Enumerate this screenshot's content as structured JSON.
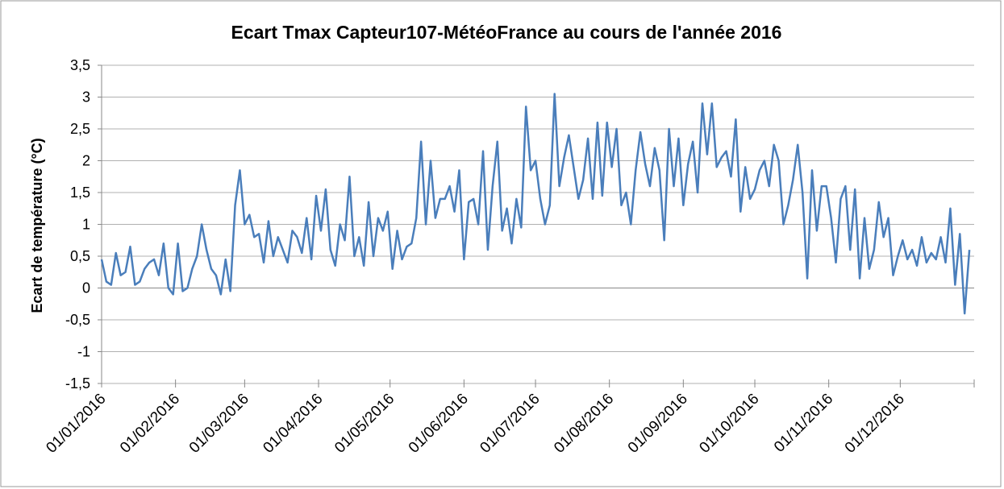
{
  "chart_data": {
    "type": "line",
    "title": "Ecart Tmax Capteur107-MétéoFrance au cours de l'année 2016",
    "y_label": "Ecart de température (°C)",
    "x": [
      "01/01/2016",
      "03/01/2016",
      "05/01/2016",
      "07/01/2016",
      "09/01/2016",
      "11/01/2016",
      "13/01/2016",
      "15/01/2016",
      "17/01/2016",
      "19/01/2016",
      "21/01/2016",
      "23/01/2016",
      "25/01/2016",
      "27/01/2016",
      "29/01/2016",
      "31/01/2016",
      "02/02/2016",
      "04/02/2016",
      "06/02/2016",
      "08/02/2016",
      "10/02/2016",
      "12/02/2016",
      "14/02/2016",
      "16/02/2016",
      "18/02/2016",
      "20/02/2016",
      "22/02/2016",
      "24/02/2016",
      "26/02/2016",
      "28/02/2016",
      "01/03/2016",
      "03/03/2016",
      "05/03/2016",
      "07/03/2016",
      "09/03/2016",
      "11/03/2016",
      "13/03/2016",
      "15/03/2016",
      "17/03/2016",
      "19/03/2016",
      "21/03/2016",
      "23/03/2016",
      "25/03/2016",
      "27/03/2016",
      "29/03/2016",
      "31/03/2016",
      "02/04/2016",
      "04/04/2016",
      "06/04/2016",
      "08/04/2016",
      "10/04/2016",
      "12/04/2016",
      "14/04/2016",
      "16/04/2016",
      "18/04/2016",
      "20/04/2016",
      "22/04/2016",
      "24/04/2016",
      "26/04/2016",
      "28/04/2016",
      "30/04/2016",
      "02/05/2016",
      "04/05/2016",
      "06/05/2016",
      "08/05/2016",
      "10/05/2016",
      "12/05/2016",
      "14/05/2016",
      "16/05/2016",
      "18/05/2016",
      "20/05/2016",
      "22/05/2016",
      "24/05/2016",
      "26/05/2016",
      "28/05/2016",
      "30/05/2016",
      "01/06/2016",
      "03/06/2016",
      "05/06/2016",
      "07/06/2016",
      "09/06/2016",
      "11/06/2016",
      "13/06/2016",
      "15/06/2016",
      "17/06/2016",
      "19/06/2016",
      "21/06/2016",
      "23/06/2016",
      "25/06/2016",
      "27/06/2016",
      "29/06/2016",
      "01/07/2016",
      "03/07/2016",
      "05/07/2016",
      "07/07/2016",
      "09/07/2016",
      "11/07/2016",
      "13/07/2016",
      "15/07/2016",
      "17/07/2016",
      "19/07/2016",
      "21/07/2016",
      "23/07/2016",
      "25/07/2016",
      "27/07/2016",
      "29/07/2016",
      "31/07/2016",
      "02/08/2016",
      "04/08/2016",
      "06/08/2016",
      "08/08/2016",
      "10/08/2016",
      "12/08/2016",
      "14/08/2016",
      "16/08/2016",
      "18/08/2016",
      "20/08/2016",
      "22/08/2016",
      "24/08/2016",
      "26/08/2016",
      "28/08/2016",
      "30/08/2016",
      "01/09/2016",
      "03/09/2016",
      "05/09/2016",
      "07/09/2016",
      "09/09/2016",
      "11/09/2016",
      "13/09/2016",
      "15/09/2016",
      "17/09/2016",
      "19/09/2016",
      "21/09/2016",
      "23/09/2016",
      "25/09/2016",
      "27/09/2016",
      "29/09/2016",
      "01/10/2016",
      "03/10/2016",
      "05/10/2016",
      "07/10/2016",
      "09/10/2016",
      "11/10/2016",
      "13/10/2016",
      "15/10/2016",
      "17/10/2016",
      "19/10/2016",
      "21/10/2016",
      "23/10/2016",
      "25/10/2016",
      "27/10/2016",
      "29/10/2016",
      "31/10/2016",
      "02/11/2016",
      "04/11/2016",
      "06/11/2016",
      "08/11/2016",
      "10/11/2016",
      "12/11/2016",
      "14/11/2016",
      "16/11/2016",
      "18/11/2016",
      "20/11/2016",
      "22/11/2016",
      "24/11/2016",
      "26/11/2016",
      "28/11/2016",
      "30/11/2016",
      "02/12/2016",
      "04/12/2016",
      "06/12/2016",
      "08/12/2016",
      "10/12/2016",
      "12/12/2016",
      "14/12/2016",
      "16/12/2016",
      "18/12/2016",
      "20/12/2016",
      "22/12/2016",
      "24/12/2016",
      "26/12/2016",
      "28/12/2016",
      "30/12/2016"
    ],
    "series": [
      {
        "color": "#4a7ebb",
        "values": [
          0.45,
          0.1,
          0.05,
          0.55,
          0.2,
          0.25,
          0.65,
          0.05,
          0.1,
          0.3,
          0.4,
          0.45,
          0.2,
          0.7,
          0.0,
          -0.1,
          0.7,
          -0.05,
          0.0,
          0.3,
          0.5,
          1.0,
          0.6,
          0.3,
          0.2,
          -0.1,
          0.45,
          -0.05,
          1.3,
          1.85,
          1.0,
          1.15,
          0.8,
          0.85,
          0.4,
          1.05,
          0.5,
          0.8,
          0.6,
          0.4,
          0.9,
          0.8,
          0.55,
          1.1,
          0.45,
          1.45,
          0.9,
          1.55,
          0.6,
          0.35,
          1.0,
          0.75,
          1.75,
          0.5,
          0.8,
          0.35,
          1.35,
          0.5,
          1.1,
          0.9,
          1.2,
          0.3,
          0.9,
          0.45,
          0.65,
          0.7,
          1.1,
          2.3,
          1.0,
          2.0,
          1.1,
          1.4,
          1.4,
          1.6,
          1.2,
          1.85,
          0.45,
          1.35,
          1.4,
          1.0,
          2.15,
          0.6,
          1.6,
          2.3,
          0.9,
          1.25,
          0.7,
          1.4,
          0.95,
          2.85,
          1.85,
          2.0,
          1.4,
          1.0,
          1.3,
          3.05,
          1.6,
          2.05,
          2.4,
          1.9,
          1.4,
          1.7,
          2.35,
          1.4,
          2.6,
          1.45,
          2.6,
          1.9,
          2.5,
          1.3,
          1.5,
          1.0,
          1.85,
          2.45,
          1.95,
          1.6,
          2.2,
          1.85,
          0.75,
          2.5,
          1.6,
          2.35,
          1.3,
          1.95,
          2.3,
          1.5,
          2.9,
          2.1,
          2.9,
          1.9,
          2.05,
          2.15,
          1.75,
          2.65,
          1.2,
          1.9,
          1.4,
          1.55,
          1.85,
          2.0,
          1.6,
          2.25,
          2.0,
          1.0,
          1.3,
          1.7,
          2.25,
          1.5,
          0.15,
          1.85,
          0.9,
          1.6,
          1.6,
          1.1,
          0.4,
          1.4,
          1.6,
          0.6,
          1.55,
          0.15,
          1.1,
          0.3,
          0.6,
          1.35,
          0.8,
          1.1,
          0.2,
          0.5,
          0.75,
          0.45,
          0.6,
          0.35,
          0.8,
          0.4,
          0.55,
          0.45,
          0.8,
          0.4,
          1.25,
          0.05,
          0.85,
          -0.4,
          0.6
        ]
      }
    ],
    "xlim": [
      "01/01/2016",
      "01/01/2017"
    ],
    "xticks": [
      "01/01/2016",
      "01/02/2016",
      "01/03/2016",
      "01/04/2016",
      "01/05/2016",
      "01/06/2016",
      "01/07/2016",
      "01/08/2016",
      "01/09/2016",
      "01/10/2016",
      "01/11/2016",
      "01/12/2016"
    ],
    "ylim": [
      -1.5,
      3.5
    ],
    "yticks": [
      {
        "value": 3.5,
        "label": "3,5"
      },
      3,
      {
        "value": 2.5,
        "label": "2,5"
      },
      2,
      {
        "value": 1.5,
        "label": "1,5"
      },
      1,
      {
        "value": 0.5,
        "label": "0,5"
      },
      0,
      {
        "value": -0.5,
        "label": "-0,5"
      },
      -1,
      {
        "value": -1.5,
        "label": "-1,5"
      }
    ],
    "grid": true
  }
}
